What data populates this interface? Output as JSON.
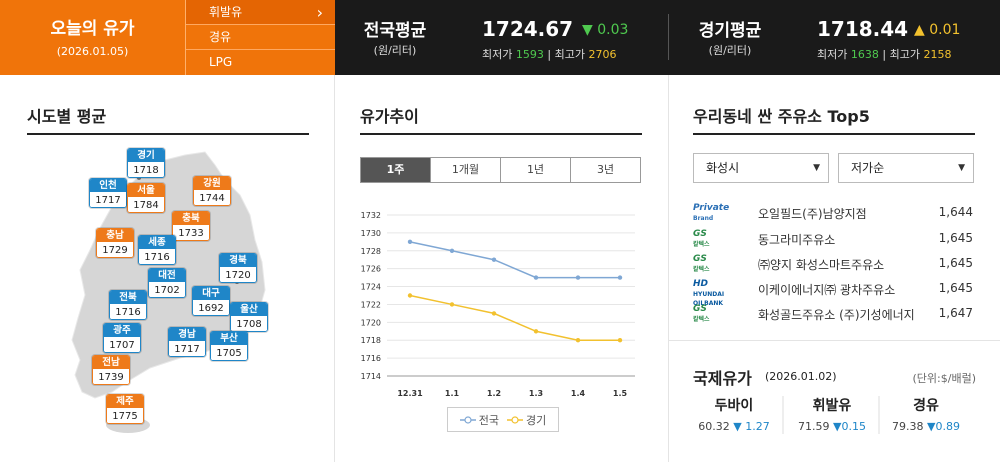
{
  "header": {
    "today_title": "오늘의 유가",
    "today_date": "(2026.01.05)",
    "fuel_types": [
      {
        "label": "휘발유",
        "selected": true
      },
      {
        "label": "경유",
        "selected": false
      },
      {
        "label": "LPG",
        "selected": false
      }
    ],
    "national": {
      "name": "전국평균",
      "unit": "(원/리터)",
      "price": "1724.67",
      "change": "▼ 0.03",
      "min_label": "최저가",
      "min": "1593",
      "max_label": "최고가",
      "max": "2706",
      "sep": "|"
    },
    "gyeonggi": {
      "name": "경기평균",
      "unit": "(원/리터)",
      "price": "1718.44",
      "change": "▲ 0.01",
      "min_label": "최저가",
      "min": "1638",
      "max_label": "최고가",
      "max": "2158",
      "sep": "|"
    }
  },
  "regional": {
    "title": "시도별 평균",
    "regions": [
      {
        "name": "경기",
        "value": "1718",
        "color": "blue"
      },
      {
        "name": "인천",
        "value": "1717",
        "color": "blue"
      },
      {
        "name": "서울",
        "value": "1784",
        "color": "orange"
      },
      {
        "name": "강원",
        "value": "1744",
        "color": "orange"
      },
      {
        "name": "충북",
        "value": "1733",
        "color": "orange"
      },
      {
        "name": "충남",
        "value": "1729",
        "color": "orange"
      },
      {
        "name": "세종",
        "value": "1716",
        "color": "blue"
      },
      {
        "name": "경북",
        "value": "1720",
        "color": "blue"
      },
      {
        "name": "대전",
        "value": "1702",
        "color": "blue"
      },
      {
        "name": "전북",
        "value": "1716",
        "color": "blue"
      },
      {
        "name": "대구",
        "value": "1692",
        "color": "blue"
      },
      {
        "name": "울산",
        "value": "1708",
        "color": "blue"
      },
      {
        "name": "광주",
        "value": "1707",
        "color": "blue"
      },
      {
        "name": "경남",
        "value": "1717",
        "color": "blue"
      },
      {
        "name": "부산",
        "value": "1705",
        "color": "blue"
      },
      {
        "name": "전남",
        "value": "1739",
        "color": "orange"
      },
      {
        "name": "제주",
        "value": "1775",
        "color": "orange"
      }
    ]
  },
  "trend": {
    "title": "유가추이",
    "tabs": [
      {
        "label": "1주",
        "active": true
      },
      {
        "label": "1개월",
        "active": false
      },
      {
        "label": "1년",
        "active": false
      },
      {
        "label": "3년",
        "active": false
      }
    ]
  },
  "chart_data": {
    "type": "line",
    "categories": [
      "12.31",
      "1.1",
      "1.2",
      "1.3",
      "1.4",
      "1.5"
    ],
    "ylim": [
      1714,
      1732
    ],
    "yticks": [
      1714,
      1716,
      1718,
      1720,
      1722,
      1724,
      1726,
      1728,
      1730,
      1732
    ],
    "grid": true,
    "legend_position": "bottom",
    "series": [
      {
        "name": "전국",
        "color": "#7fa7d4",
        "values": [
          1729,
          1728,
          1727,
          1725,
          1725,
          1725
        ]
      },
      {
        "name": "경기",
        "color": "#f2c12e",
        "values": [
          1723,
          1722,
          1721,
          1719,
          1718,
          1718
        ]
      }
    ]
  },
  "stations": {
    "title": "우리동네 싼 주유소 Top5",
    "region_select": "화성시",
    "sort_select": "저가순",
    "items": [
      {
        "brand_line1": "Private",
        "brand_line2": "Brand",
        "brand_color": "#2a6fb5",
        "name": "오일필드(주)남양지점",
        "price": "1,644"
      },
      {
        "brand_line1": "GS",
        "brand_line2": "칼텍스",
        "brand_color": "#2a8a4a",
        "name": "동그라미주유소",
        "price": "1,645"
      },
      {
        "brand_line1": "GS",
        "brand_line2": "칼텍스",
        "brand_color": "#2a8a4a",
        "name": "㈜양지 화성스마트주유소",
        "price": "1,645"
      },
      {
        "brand_line1": "HD",
        "brand_line2": "HYUNDAI OILBANK",
        "brand_color": "#0a5aa0",
        "name": "이케이에너지㈜ 광차주유소",
        "price": "1,645"
      },
      {
        "brand_line1": "GS",
        "brand_line2": "칼텍스",
        "brand_color": "#2a8a4a",
        "name": "화성골드주유소 (주)기성에너지",
        "price": "1,647"
      }
    ]
  },
  "international": {
    "title": "국제유가",
    "date": "(2026.01.02)",
    "unit": "(단위:$/배럴)",
    "items": [
      {
        "name": "두바이",
        "value": "60.32",
        "change": "▼ 1.27"
      },
      {
        "name": "휘발유",
        "value": "71.59",
        "change": "▼0.15"
      },
      {
        "name": "경유",
        "value": "79.38",
        "change": "▼0.89"
      }
    ]
  }
}
